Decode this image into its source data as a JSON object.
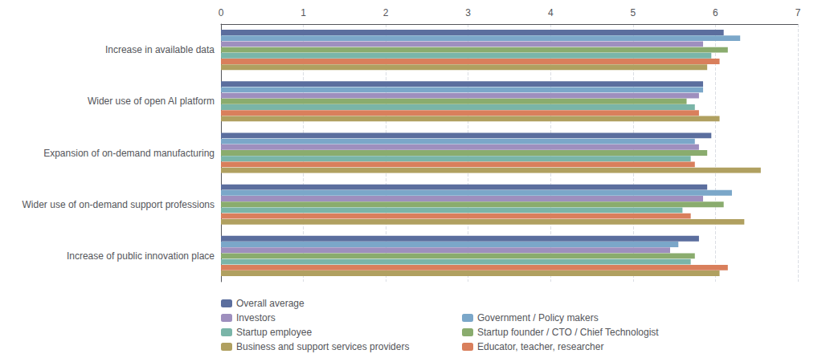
{
  "chart_data": {
    "type": "bar",
    "orientation": "horizontal",
    "categories": [
      "Increase in available data",
      "Wider use of open AI platform",
      "Expansion of on-demand manufacturing",
      "Wider use of on-demand support professions",
      "Increase of public innovation place"
    ],
    "series": [
      {
        "name": "Overall average",
        "color": "#5b6e9e",
        "values": [
          6.1,
          5.85,
          5.95,
          5.9,
          5.8
        ]
      },
      {
        "name": "Government / Policy makers",
        "color": "#7ba7c9",
        "values": [
          6.3,
          5.85,
          5.75,
          6.2,
          5.55
        ]
      },
      {
        "name": "Investors",
        "color": "#9e8fbe",
        "values": [
          5.85,
          5.8,
          5.8,
          5.85,
          5.45
        ]
      },
      {
        "name": "Startup founder / CTO / Chief Technologist",
        "color": "#8aac6e",
        "values": [
          6.15,
          5.65,
          5.9,
          6.1,
          5.75
        ]
      },
      {
        "name": "Startup employee",
        "color": "#7ab5a8",
        "values": [
          5.95,
          5.75,
          5.7,
          5.6,
          5.7
        ]
      },
      {
        "name": "Educator, teacher, researcher",
        "color": "#d97f5c",
        "values": [
          6.05,
          5.8,
          5.75,
          5.7,
          6.15
        ]
      },
      {
        "name": "Business and support services providers",
        "color": "#b0a060",
        "values": [
          5.9,
          6.05,
          6.55,
          6.35,
          6.05
        ]
      }
    ],
    "xlim": [
      0,
      7
    ],
    "xticks": [
      0,
      1,
      2,
      3,
      4,
      5,
      6,
      7
    ],
    "grid": true,
    "legend": "bottom"
  }
}
